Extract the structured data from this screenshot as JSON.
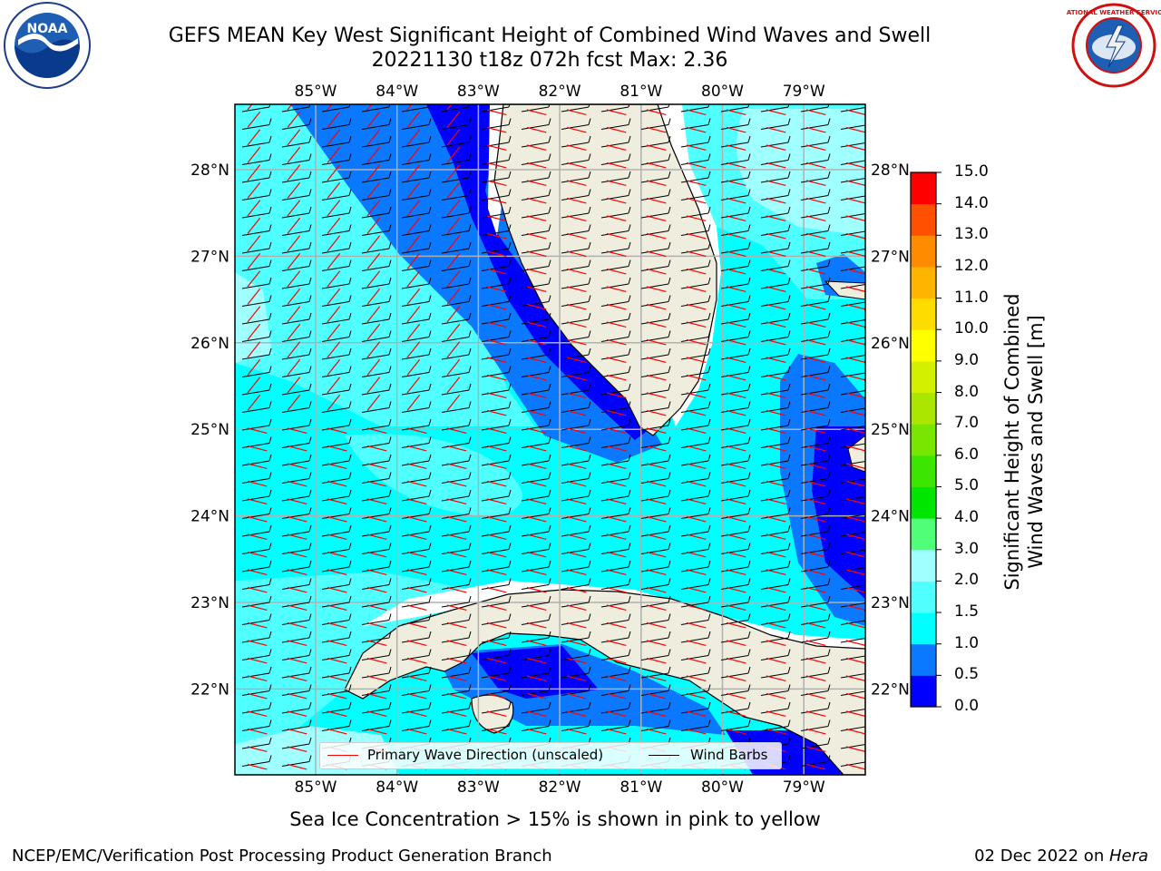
{
  "title": {
    "line1": "GEFS MEAN Key West Significant Height of Combined Wind Waves and Swell",
    "line2": "20221130 t18z 072h fcst   Max: 2.36"
  },
  "map": {
    "longitude_labels": [
      "85°W",
      "84°W",
      "83°W",
      "82°W",
      "81°W",
      "80°W",
      "79°W"
    ],
    "latitude_labels": [
      "28°N",
      "27°N",
      "26°N",
      "25°N",
      "24°N",
      "23°N",
      "22°N"
    ],
    "land_color": "#efedde",
    "grid_color": "#b0b0b0"
  },
  "legend": {
    "wave_label": "Primary Wave Direction (unscaled)",
    "wave_color": "#ff0000",
    "barb_label": "Wind Barbs",
    "barb_color": "#000000"
  },
  "colorbar": {
    "title": "Significant Height of Combined Wind Waves and Swell [m]",
    "ticks": [
      "0.0",
      "0.5",
      "1.0",
      "1.5",
      "2.0",
      "3.0",
      "4.0",
      "5.0",
      "6.0",
      "7.0",
      "8.0",
      "9.0",
      "10.0",
      "11.0",
      "12.0",
      "13.0",
      "14.0",
      "15.0"
    ],
    "colors": [
      "#0000ff",
      "#0a78ff",
      "#00ffff",
      "#50ffff",
      "#a0ffff",
      "#50ff78",
      "#00e600",
      "#3ce600",
      "#78e600",
      "#aae600",
      "#d2f000",
      "#ffff00",
      "#ffdc00",
      "#ffb400",
      "#ff8c00",
      "#ff5000",
      "#ff0000"
    ]
  },
  "ice_note": "Sea Ice Concentration > 15% is shown in pink to yellow",
  "footer": {
    "left": "NCEP/EMC/Verification Post Processing Product Generation Branch",
    "right_date": "02 Dec 2022 on ",
    "right_machine": "Hera"
  },
  "logos": {
    "noaa_text": "NOAA",
    "nws_text": "NATIONAL WEATHER SERVICE"
  }
}
